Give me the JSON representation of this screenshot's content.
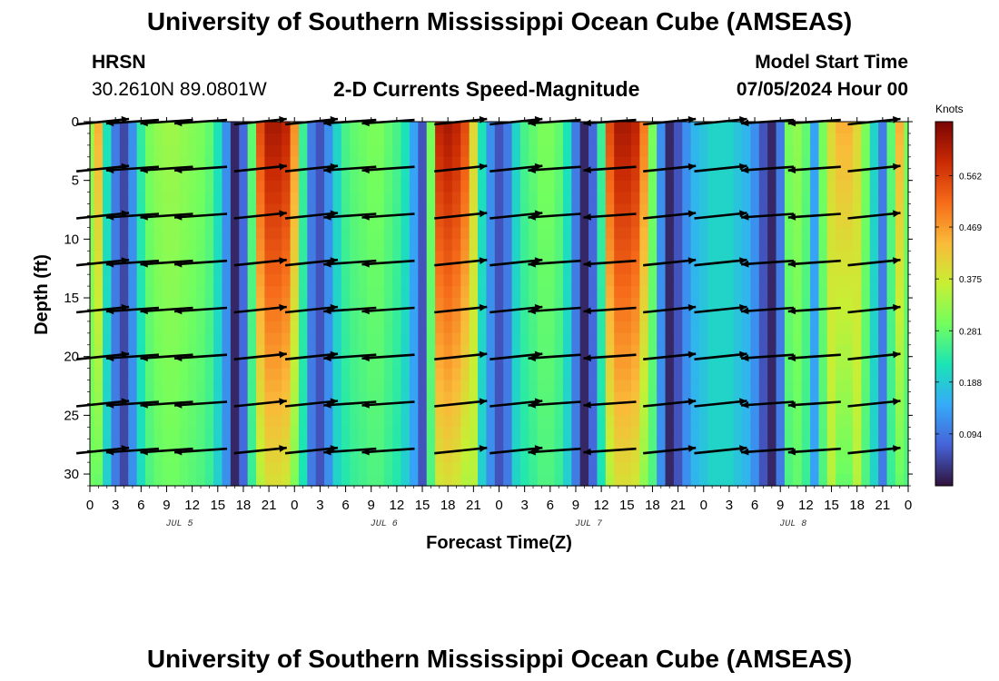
{
  "header": {
    "title": "University of Southern Mississippi Ocean Cube (AMSEAS)",
    "station": "HRSN",
    "coords": "30.2610N  89.0801W",
    "model_start_label": "Model Start Time",
    "model_start_value": "07/05/2024 Hour 00",
    "footer_title": "University of Southern Mississippi Ocean Cube (AMSEAS)"
  },
  "chart_data": {
    "type": "heatmap",
    "title": "2-D Currents Speed-Magnitude",
    "xlabel": "Forecast Time(Z)",
    "ylabel": "Depth (ft)",
    "colorbar_title": "Knots",
    "colorbar_ticks": [
      "0.094",
      "0.188",
      "0.281",
      "0.375",
      "0.469",
      "0.562"
    ],
    "colorbar_values": [
      0.094,
      0.188,
      0.281,
      0.375,
      0.469,
      0.562
    ],
    "colorbar_range": [
      0.0,
      0.66
    ],
    "colors": [
      "#30123b",
      "#4662d7",
      "#36aaf9",
      "#1ae4b6",
      "#72fe5e",
      "#c8ef34",
      "#faba39",
      "#f66b19",
      "#ca2a04",
      "#7a0403"
    ],
    "xlim_hours": [
      0,
      96
    ],
    "ylim_ft": [
      31,
      0
    ],
    "x_ticks": [
      "0",
      "3",
      "6",
      "9",
      "12",
      "15",
      "18",
      "21",
      "0",
      "3",
      "6",
      "9",
      "12",
      "15",
      "18",
      "21",
      "0",
      "3",
      "6",
      "9",
      "12",
      "15",
      "18",
      "21",
      "0",
      "3",
      "6",
      "9",
      "12",
      "15",
      "18",
      "21",
      "0"
    ],
    "y_ticks": [
      "0",
      "5",
      "10",
      "15",
      "20",
      "25",
      "30"
    ],
    "y_tick_values": [
      0,
      5,
      10,
      15,
      20,
      25,
      30
    ],
    "day_labels": [
      "JUL 5",
      "JUL 6",
      "JUL 7",
      "JUL 8"
    ],
    "day_label_hours": [
      10.5,
      34.5,
      58.5,
      82.5
    ],
    "arrow_depths_ft": [
      0,
      4,
      8,
      12,
      16,
      20,
      24,
      28
    ],
    "speed_hours": [
      0,
      1,
      2,
      3,
      4,
      5,
      6,
      7,
      8,
      9,
      10,
      11,
      12,
      13,
      14,
      15,
      16,
      17,
      18,
      19,
      20,
      21,
      22,
      23,
      24,
      25,
      26,
      27,
      28,
      29,
      30,
      31,
      32,
      33,
      34,
      35,
      36,
      37,
      38,
      39,
      40,
      41,
      42,
      43,
      44,
      45,
      46,
      47,
      48,
      49,
      50,
      51,
      52,
      53,
      54,
      55,
      56,
      57,
      58,
      59,
      60,
      61,
      62,
      63,
      64,
      65,
      66,
      67,
      68,
      69,
      70,
      71,
      72,
      73,
      74,
      75,
      76,
      77,
      78,
      79,
      80,
      81,
      82,
      83,
      84,
      85,
      86,
      87,
      88,
      89,
      90,
      91,
      92,
      93,
      94,
      95,
      96
    ],
    "surface_speed_knots": [
      0.33,
      0.45,
      0.22,
      0.1,
      0.05,
      0.12,
      0.24,
      0.3,
      0.32,
      0.33,
      0.33,
      0.32,
      0.31,
      0.3,
      0.28,
      0.22,
      0.12,
      0.02,
      0.08,
      0.28,
      0.55,
      0.62,
      0.62,
      0.6,
      0.48,
      0.25,
      0.1,
      0.06,
      0.12,
      0.2,
      0.26,
      0.28,
      0.29,
      0.3,
      0.3,
      0.28,
      0.26,
      0.22,
      0.14,
      0.06,
      0.3,
      0.6,
      0.62,
      0.6,
      0.55,
      0.4,
      0.22,
      0.12,
      0.06,
      0.1,
      0.2,
      0.26,
      0.28,
      0.3,
      0.3,
      0.28,
      0.22,
      0.1,
      0.02,
      0.08,
      0.25,
      0.55,
      0.62,
      0.62,
      0.6,
      0.5,
      0.3,
      0.12,
      0.02,
      0.06,
      0.12,
      0.16,
      0.18,
      0.2,
      0.2,
      0.2,
      0.18,
      0.16,
      0.12,
      0.06,
      0.02,
      0.1,
      0.3,
      0.32,
      0.28,
      0.14,
      0.3,
      0.4,
      0.45,
      0.45,
      0.4,
      0.3,
      0.2,
      0.1,
      0.28,
      0.45,
      0.3
    ],
    "arrows_surface": [
      {
        "t": 1.5,
        "dir": 1
      },
      {
        "t": 5.0,
        "dir": -1
      },
      {
        "t": 9.0,
        "dir": -1
      },
      {
        "t": 13.0,
        "dir": -1
      },
      {
        "t": 20.0,
        "dir": 1
      },
      {
        "t": 26.0,
        "dir": 1
      },
      {
        "t": 30.5,
        "dir": -1
      },
      {
        "t": 35.0,
        "dir": -1
      },
      {
        "t": 43.5,
        "dir": 1
      },
      {
        "t": 50.0,
        "dir": 1
      },
      {
        "t": 54.5,
        "dir": -1
      },
      {
        "t": 61.0,
        "dir": -1
      },
      {
        "t": 68.0,
        "dir": 1
      },
      {
        "t": 74.0,
        "dir": 1
      },
      {
        "t": 79.5,
        "dir": -1
      },
      {
        "t": 85.0,
        "dir": -1
      },
      {
        "t": 92.0,
        "dir": 1
      }
    ]
  }
}
